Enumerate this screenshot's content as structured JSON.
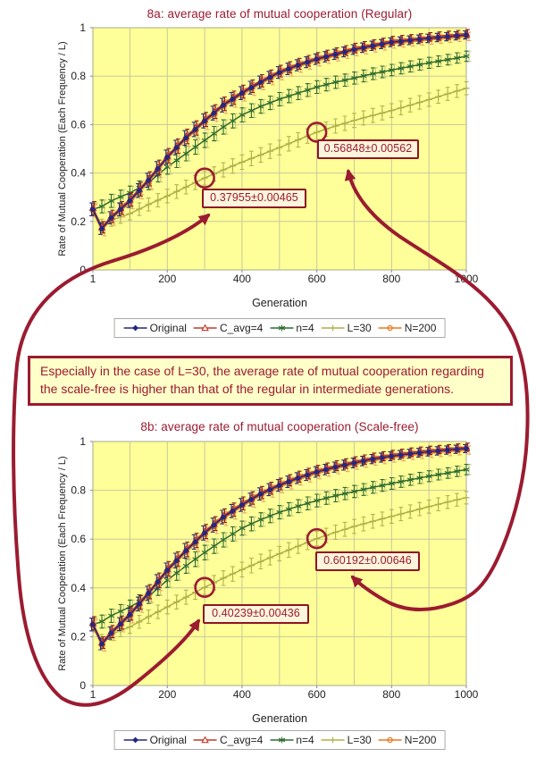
{
  "figure": {
    "description": "Two line charts with error bars comparing average rate of mutual cooperation on regular and scale-free networks"
  },
  "note": {
    "line1": "Especially in the case of L=30, the average rate of mutual cooperation regarding",
    "line2": "the scale-free is higher than that of the regular in intermediate generations."
  },
  "colors": {
    "accent": "#9B1B30",
    "plot_bg": "#FFFF99",
    "grid": "#C8C89B",
    "plot_border": "#A9A98C",
    "axis_text": "#222222",
    "note_bg": "#FFFFC9",
    "annotation_bg": "#FDF5DC",
    "annotation_border": "#8E1523",
    "legend_border": "#AAAAAA"
  },
  "chart_data": [
    {
      "id": "8a",
      "type": "line",
      "title": "8a: average rate of mutual cooperation (Regular)",
      "xlabel": "Generation",
      "ylabel": "Rate of Mutual Cooperation (Each Frequency / L)",
      "xlim": [
        1,
        1000
      ],
      "ylim": [
        0,
        1
      ],
      "x_ticks": [
        1,
        200,
        400,
        600,
        800,
        1000
      ],
      "y_ticks": [
        0,
        0.2,
        0.4,
        0.6,
        0.8,
        1
      ],
      "grid": true,
      "legend_position": "bottom",
      "x_control": [
        1,
        25,
        50,
        75,
        100,
        150,
        200,
        250,
        300,
        350,
        400,
        450,
        500,
        550,
        600,
        650,
        700,
        750,
        800,
        850,
        900,
        950,
        1000
      ],
      "series": [
        {
          "name": "Original",
          "color": "#26267E",
          "marker": "diamond",
          "values": [
            0.25,
            0.17,
            0.215,
            0.25,
            0.285,
            0.37,
            0.465,
            0.545,
            0.615,
            0.68,
            0.73,
            0.775,
            0.815,
            0.845,
            0.87,
            0.89,
            0.91,
            0.925,
            0.94,
            0.948,
            0.956,
            0.963,
            0.97
          ]
        },
        {
          "name": "C_avg=4",
          "color": "#C03A2B",
          "marker": "triangle",
          "base": "Original",
          "offset": 0.006
        },
        {
          "name": "n=4",
          "color": "#2F6B2F",
          "marker": "star",
          "values": [
            0.25,
            0.262,
            0.285,
            0.302,
            0.318,
            0.36,
            0.425,
            0.48,
            0.535,
            0.59,
            0.64,
            0.675,
            0.705,
            0.73,
            0.755,
            0.775,
            0.792,
            0.81,
            0.825,
            0.84,
            0.855,
            0.868,
            0.882
          ]
        },
        {
          "name": "L=30",
          "color": "#AFAF4A",
          "marker": "plus",
          "values": [
            0.25,
            0.185,
            0.205,
            0.218,
            0.232,
            0.27,
            0.305,
            0.342,
            0.3795,
            0.413,
            0.445,
            0.475,
            0.505,
            0.537,
            0.5685,
            0.594,
            0.617,
            0.638,
            0.658,
            0.68,
            0.703,
            0.727,
            0.75
          ]
        },
        {
          "name": "N=200",
          "color": "#E8791E",
          "marker": "circle",
          "base": "Original",
          "offset": -0.006
        }
      ],
      "annotations": [
        {
          "gen": 300,
          "value": 0.37955,
          "stderr": 0.00465,
          "label": "0.37955±0.00465",
          "series": "L=30"
        },
        {
          "gen": 600,
          "value": 0.56848,
          "stderr": 0.00562,
          "label": "0.56848±0.00562",
          "series": "L=30"
        }
      ]
    },
    {
      "id": "8b",
      "type": "line",
      "title": "8b: average rate of mutual cooperation (Scale-free)",
      "xlabel": "Generation",
      "ylabel": "Rate of Mutual Cooperation (Each Frequency / L)",
      "xlim": [
        1,
        1000
      ],
      "ylim": [
        0,
        1
      ],
      "x_ticks": [
        1,
        200,
        400,
        600,
        800,
        1000
      ],
      "y_ticks": [
        0,
        0.2,
        0.4,
        0.6,
        0.8,
        1
      ],
      "grid": true,
      "legend_position": "bottom",
      "x_control": [
        1,
        25,
        50,
        75,
        100,
        150,
        200,
        250,
        300,
        350,
        400,
        450,
        500,
        550,
        600,
        650,
        700,
        750,
        800,
        850,
        900,
        950,
        1000
      ],
      "series": [
        {
          "name": "Original",
          "color": "#26267E",
          "marker": "diamond",
          "values": [
            0.25,
            0.17,
            0.215,
            0.252,
            0.29,
            0.378,
            0.472,
            0.552,
            0.625,
            0.69,
            0.74,
            0.785,
            0.82,
            0.85,
            0.875,
            0.895,
            0.912,
            0.928,
            0.94,
            0.95,
            0.958,
            0.965,
            0.971
          ]
        },
        {
          "name": "C_avg=4",
          "color": "#C03A2B",
          "marker": "triangle",
          "base": "Original",
          "offset": 0.006
        },
        {
          "name": "n=4",
          "color": "#2F6B2F",
          "marker": "star",
          "values": [
            0.25,
            0.262,
            0.286,
            0.304,
            0.322,
            0.365,
            0.432,
            0.49,
            0.545,
            0.597,
            0.645,
            0.68,
            0.71,
            0.735,
            0.758,
            0.778,
            0.795,
            0.812,
            0.828,
            0.843,
            0.858,
            0.871,
            0.885
          ]
        },
        {
          "name": "L=30",
          "color": "#AFAF4A",
          "marker": "plus",
          "values": [
            0.25,
            0.185,
            0.21,
            0.225,
            0.24,
            0.282,
            0.322,
            0.362,
            0.40239,
            0.44,
            0.475,
            0.508,
            0.54,
            0.571,
            0.60192,
            0.628,
            0.652,
            0.673,
            0.693,
            0.713,
            0.733,
            0.752,
            0.77
          ]
        },
        {
          "name": "N=200",
          "color": "#E8791E",
          "marker": "circle",
          "base": "Original",
          "offset": -0.006
        }
      ],
      "annotations": [
        {
          "gen": 300,
          "value": 0.40239,
          "stderr": 0.00436,
          "label": "0.40239±0.00436",
          "series": "L=30"
        },
        {
          "gen": 600,
          "value": 0.60192,
          "stderr": 0.00646,
          "label": "0.60192±0.00646",
          "series": "L=30"
        }
      ]
    }
  ]
}
